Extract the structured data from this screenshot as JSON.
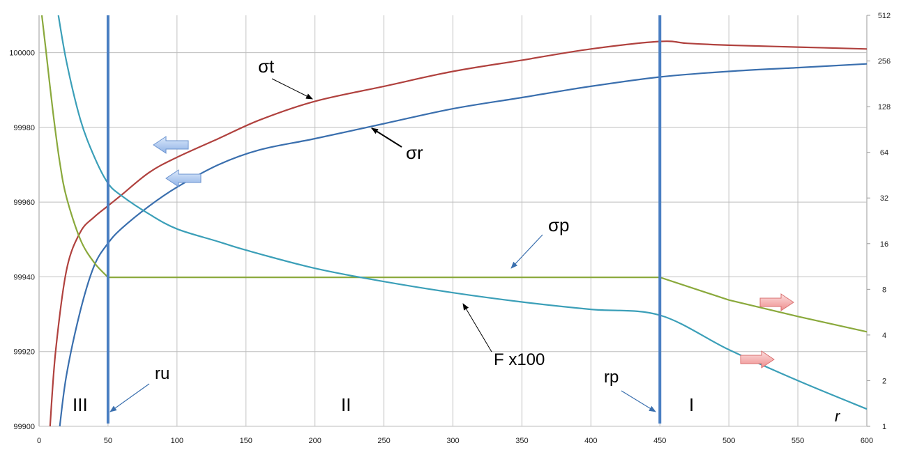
{
  "chart_data": {
    "type": "line",
    "title": "",
    "xlabel": "r",
    "x_ticks": [
      "0",
      "50",
      "100",
      "150",
      "200",
      "250",
      "300",
      "350",
      "400",
      "450",
      "500",
      "550",
      "600"
    ],
    "xlim": [
      0,
      600
    ],
    "y_left_ticks": [
      "99900",
      "99920",
      "99940",
      "99960",
      "99980",
      "100000"
    ],
    "ylim_left": [
      99900,
      100010
    ],
    "y_right_ticks": [
      "1",
      "2",
      "4",
      "8",
      "16",
      "32",
      "64",
      "128",
      "256",
      "512"
    ],
    "ylim_right": [
      1,
      512
    ],
    "y_right_scale": "log2",
    "grid": true,
    "series": [
      {
        "name": "σt",
        "axis": "left",
        "color": "#b0413e",
        "x": [
          8,
          12,
          20,
          30,
          40,
          50,
          60,
          80,
          100,
          130,
          160,
          200,
          250,
          300,
          350,
          400,
          450,
          470,
          500,
          550,
          600
        ],
        "y": [
          99900,
          99920,
          99942,
          99952,
          99956,
          99959,
          99962,
          99968,
          99972,
          99977,
          99982,
          99987,
          99991,
          99995,
          99998,
          100001,
          100003,
          100002.5,
          100002,
          100001.5,
          100001
        ]
      },
      {
        "name": "σr",
        "axis": "left",
        "color": "#3a6fae",
        "x": [
          15,
          20,
          30,
          40,
          50,
          60,
          80,
          100,
          130,
          160,
          200,
          250,
          300,
          350,
          400,
          450,
          500,
          550,
          600
        ],
        "y": [
          99900,
          99914,
          99931,
          99943,
          99949,
          99953,
          99959,
          99964,
          99970,
          99974,
          99977,
          99981,
          99985,
          99988,
          99991,
          99993.5,
          99995,
          99996,
          99997
        ]
      },
      {
        "name": "σp",
        "axis": "right",
        "color": "#8aa93c",
        "x": [
          2,
          5,
          10,
          15,
          20,
          30,
          40,
          50,
          100,
          200,
          300,
          400,
          450,
          500,
          550,
          600
        ],
        "y": [
          512,
          300,
          120,
          55,
          32,
          17,
          12,
          9.6,
          9.6,
          9.6,
          9.6,
          9.6,
          9.6,
          6.8,
          5.3,
          4.2
        ]
      },
      {
        "name": "F x100",
        "axis": "right",
        "color": "#3b9fb8",
        "x": [
          14,
          20,
          30,
          40,
          50,
          60,
          80,
          100,
          130,
          150,
          200,
          250,
          300,
          350,
          400,
          450,
          500,
          550,
          600
        ],
        "y": [
          512,
          250,
          105,
          60,
          40,
          33,
          25,
          20,
          16.5,
          14.5,
          11,
          9,
          7.6,
          6.6,
          5.9,
          5.4,
          3.2,
          2.0,
          1.3
        ]
      }
    ],
    "boundaries": [
      {
        "x": 50,
        "label": "ru"
      },
      {
        "x": 450,
        "label": "rp"
      }
    ],
    "region_labels": [
      "III",
      "II",
      "I"
    ],
    "annotations": [
      {
        "label": "σt"
      },
      {
        "label": "σr"
      },
      {
        "label": "σp"
      },
      {
        "label": "F x100"
      }
    ]
  }
}
